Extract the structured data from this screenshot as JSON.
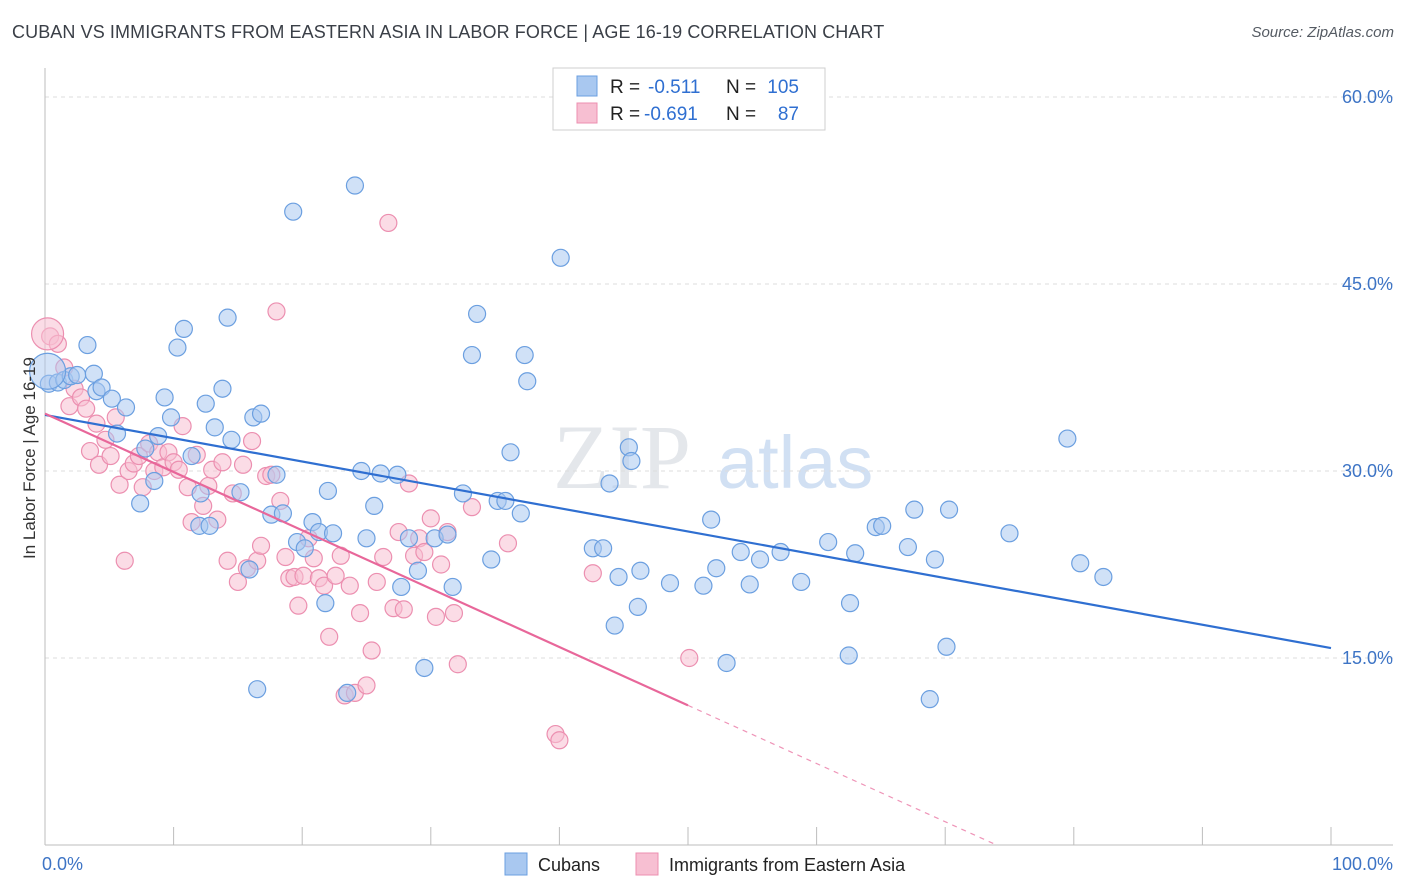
{
  "title": "CUBAN VS IMMIGRANTS FROM EASTERN ASIA IN LABOR FORCE | AGE 16-19 CORRELATION CHART",
  "source": "Source: ZipAtlas.com",
  "watermark": {
    "zip": "ZIP",
    "atlas": "atlas"
  },
  "colors": {
    "cubans_fill": "#a9c8f0",
    "cubans_stroke": "#6b9fe0",
    "cubans_line": "#2f6fd1",
    "asia_fill": "#f7bfd2",
    "asia_stroke": "#ec8fb0",
    "asia_line": "#e8679a",
    "tick_text": "#3d74c5",
    "grid": "#dddddd"
  },
  "legend_top": {
    "rows": [
      {
        "r_label": "R =",
        "r_value": "-0.511",
        "n_label": "N =",
        "n_value": "105"
      },
      {
        "r_label": "R =",
        "r_value": "-0.691",
        "n_label": "N =",
        "n_value": "87"
      }
    ]
  },
  "chart_data": {
    "type": "scatter",
    "title": "CUBAN VS IMMIGRANTS FROM EASTERN ASIA IN LABOR FORCE | AGE 16-19 CORRELATION CHART",
    "xlabel": "",
    "ylabel": "In Labor Force | Age 16-19",
    "xlim": [
      0,
      100
    ],
    "ylim": [
      0,
      60
    ],
    "x_tick_labels": [
      "0.0%",
      "100.0%"
    ],
    "y_ticks": [
      15,
      30,
      45,
      60
    ],
    "y_tick_labels": [
      "15.0%",
      "30.0%",
      "45.0%",
      "60.0%"
    ],
    "grid": true,
    "legend_placement": "top-center",
    "series": [
      {
        "name": "Cubans",
        "r": -0.511,
        "n": 105,
        "trend": {
          "x0": 0,
          "y0": 34.5,
          "x1": 100,
          "y1": 15.8
        },
        "points": [
          [
            0.3,
            37.0
          ],
          [
            1.0,
            37.1
          ],
          [
            1.5,
            37.3
          ],
          [
            2.0,
            37.6
          ],
          [
            2.5,
            37.7
          ],
          [
            3.3,
            40.1
          ],
          [
            3.8,
            37.8
          ],
          [
            4.0,
            36.4
          ],
          [
            4.4,
            36.7
          ],
          [
            5.2,
            35.8
          ],
          [
            5.6,
            33.0
          ],
          [
            6.3,
            35.1
          ],
          [
            7.4,
            27.4
          ],
          [
            7.8,
            31.8
          ],
          [
            8.5,
            29.2
          ],
          [
            8.8,
            32.8
          ],
          [
            9.3,
            35.9
          ],
          [
            9.8,
            34.3
          ],
          [
            10.3,
            39.9
          ],
          [
            10.8,
            41.4
          ],
          [
            11.4,
            31.2
          ],
          [
            12.0,
            25.6
          ],
          [
            12.5,
            35.4
          ],
          [
            12.8,
            25.6
          ],
          [
            13.2,
            33.5
          ],
          [
            13.8,
            36.6
          ],
          [
            14.2,
            42.3
          ],
          [
            14.5,
            32.5
          ],
          [
            15.2,
            28.3
          ],
          [
            16.2,
            34.3
          ],
          [
            16.5,
            12.5
          ],
          [
            16.8,
            34.6
          ],
          [
            17.6,
            26.5
          ],
          [
            18.0,
            29.7
          ],
          [
            18.5,
            26.6
          ],
          [
            19.3,
            50.8
          ],
          [
            19.6,
            24.3
          ],
          [
            20.2,
            23.8
          ],
          [
            20.8,
            25.9
          ],
          [
            21.3,
            25.1
          ],
          [
            21.8,
            19.4
          ],
          [
            22.4,
            25.0
          ],
          [
            23.5,
            12.2
          ],
          [
            24.1,
            52.9
          ],
          [
            24.6,
            30.0
          ],
          [
            25.0,
            24.6
          ],
          [
            25.6,
            27.2
          ],
          [
            26.1,
            29.8
          ],
          [
            27.4,
            29.7
          ],
          [
            27.7,
            20.7
          ],
          [
            28.3,
            24.6
          ],
          [
            29.0,
            22.0
          ],
          [
            29.5,
            14.2
          ],
          [
            30.3,
            24.6
          ],
          [
            31.3,
            24.9
          ],
          [
            31.7,
            20.7
          ],
          [
            32.5,
            28.2
          ],
          [
            33.2,
            39.3
          ],
          [
            33.6,
            42.6
          ],
          [
            34.7,
            22.9
          ],
          [
            35.2,
            27.6
          ],
          [
            35.8,
            27.6
          ],
          [
            36.2,
            31.5
          ],
          [
            37.3,
            39.3
          ],
          [
            37.5,
            37.2
          ],
          [
            40.1,
            47.1
          ],
          [
            42.6,
            23.8
          ],
          [
            43.4,
            23.8
          ],
          [
            43.9,
            29.0
          ],
          [
            44.3,
            17.6
          ],
          [
            44.6,
            21.5
          ],
          [
            45.4,
            31.9
          ],
          [
            45.6,
            30.8
          ],
          [
            46.1,
            19.1
          ],
          [
            46.3,
            22.0
          ],
          [
            48.6,
            21.0
          ],
          [
            51.2,
            20.8
          ],
          [
            51.8,
            26.1
          ],
          [
            52.2,
            22.2
          ],
          [
            53.0,
            14.6
          ],
          [
            54.1,
            23.5
          ],
          [
            54.8,
            20.9
          ],
          [
            55.6,
            22.9
          ],
          [
            57.2,
            23.5
          ],
          [
            58.8,
            21.1
          ],
          [
            60.9,
            24.3
          ],
          [
            62.5,
            15.2
          ],
          [
            62.6,
            19.4
          ],
          [
            63.0,
            23.4
          ],
          [
            64.6,
            25.5
          ],
          [
            65.1,
            25.6
          ],
          [
            67.1,
            23.9
          ],
          [
            67.6,
            26.9
          ],
          [
            68.8,
            11.7
          ],
          [
            69.2,
            22.9
          ],
          [
            70.1,
            15.9
          ],
          [
            70.3,
            26.9
          ],
          [
            75.0,
            25.0
          ],
          [
            79.5,
            32.6
          ],
          [
            80.5,
            22.6
          ],
          [
            82.3,
            21.5
          ],
          [
            37.0,
            26.6
          ],
          [
            22.0,
            28.4
          ],
          [
            15.9,
            22.1
          ],
          [
            12.1,
            28.2
          ]
        ]
      },
      {
        "name": "Immigrants from Eastern Asia",
        "r": -0.691,
        "n": 87,
        "trend": {
          "x0": 0,
          "y0": 34.6,
          "x1": 50,
          "y1": 11.2,
          "dashed_to_x": 74,
          "dashed_to_y": 0
        },
        "points": [
          [
            0.4,
            40.8
          ],
          [
            1.0,
            40.2
          ],
          [
            1.5,
            38.3
          ],
          [
            1.9,
            35.2
          ],
          [
            2.3,
            36.6
          ],
          [
            2.8,
            35.9
          ],
          [
            3.2,
            35.0
          ],
          [
            3.5,
            31.6
          ],
          [
            4.0,
            33.8
          ],
          [
            4.2,
            30.5
          ],
          [
            4.7,
            32.5
          ],
          [
            5.1,
            31.2
          ],
          [
            5.5,
            34.3
          ],
          [
            5.8,
            28.9
          ],
          [
            6.2,
            22.8
          ],
          [
            6.5,
            30.0
          ],
          [
            6.9,
            30.6
          ],
          [
            7.3,
            31.2
          ],
          [
            7.6,
            28.7
          ],
          [
            8.1,
            32.2
          ],
          [
            8.5,
            30.0
          ],
          [
            8.8,
            31.5
          ],
          [
            9.2,
            30.3
          ],
          [
            9.6,
            31.5
          ],
          [
            10.0,
            30.7
          ],
          [
            10.4,
            30.1
          ],
          [
            10.7,
            33.6
          ],
          [
            11.1,
            28.7
          ],
          [
            11.4,
            25.9
          ],
          [
            11.8,
            31.3
          ],
          [
            12.3,
            27.2
          ],
          [
            12.7,
            28.8
          ],
          [
            13.0,
            30.1
          ],
          [
            13.4,
            26.1
          ],
          [
            13.8,
            30.7
          ],
          [
            14.2,
            22.8
          ],
          [
            14.6,
            28.2
          ],
          [
            15.0,
            21.1
          ],
          [
            15.4,
            30.5
          ],
          [
            15.7,
            22.2
          ],
          [
            16.1,
            32.4
          ],
          [
            16.5,
            22.8
          ],
          [
            16.8,
            24.0
          ],
          [
            17.2,
            29.6
          ],
          [
            17.6,
            29.7
          ],
          [
            18.0,
            42.8
          ],
          [
            18.3,
            27.6
          ],
          [
            18.7,
            23.1
          ],
          [
            19.0,
            21.4
          ],
          [
            19.4,
            21.5
          ],
          [
            19.7,
            19.2
          ],
          [
            20.1,
            21.6
          ],
          [
            20.5,
            24.6
          ],
          [
            20.9,
            23.0
          ],
          [
            21.3,
            21.4
          ],
          [
            21.7,
            20.8
          ],
          [
            22.1,
            16.7
          ],
          [
            22.6,
            21.6
          ],
          [
            23.0,
            23.2
          ],
          [
            23.3,
            12.0
          ],
          [
            23.7,
            20.8
          ],
          [
            24.1,
            12.2
          ],
          [
            24.5,
            18.6
          ],
          [
            25.0,
            12.8
          ],
          [
            25.4,
            15.6
          ],
          [
            25.8,
            21.1
          ],
          [
            26.3,
            23.1
          ],
          [
            26.7,
            49.9
          ],
          [
            27.1,
            19.0
          ],
          [
            27.5,
            25.1
          ],
          [
            27.9,
            18.9
          ],
          [
            28.3,
            29.0
          ],
          [
            28.7,
            23.2
          ],
          [
            29.1,
            24.6
          ],
          [
            29.5,
            23.5
          ],
          [
            30.0,
            26.2
          ],
          [
            30.4,
            18.3
          ],
          [
            30.8,
            22.5
          ],
          [
            31.3,
            25.1
          ],
          [
            31.8,
            18.6
          ],
          [
            32.1,
            14.5
          ],
          [
            33.2,
            27.1
          ],
          [
            36.0,
            24.2
          ],
          [
            39.7,
            8.9
          ],
          [
            40.0,
            8.4
          ],
          [
            42.6,
            21.8
          ],
          [
            50.1,
            15.0
          ]
        ]
      }
    ]
  },
  "legend_bottom": {
    "items": [
      "Cubans",
      "Immigrants from Eastern Asia"
    ]
  },
  "ylabel": "In Labor Force | Age 16-19",
  "x_labels": {
    "left": "0.0%",
    "right": "100.0%"
  }
}
